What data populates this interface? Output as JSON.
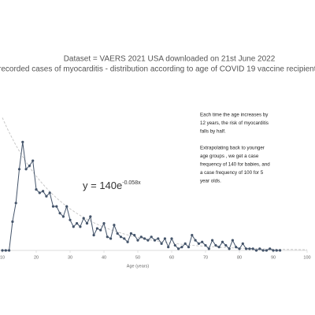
{
  "chart_data": {
    "type": "line",
    "title": "Dataset = VAERS 2021 USA downloaded on 21st June 2022",
    "subtitle": "recorded cases of myocarditis - distribution according to age of COVID 19 vaccine recipient",
    "x_label": "Age (years)",
    "x": [
      10,
      11,
      12,
      13,
      14,
      15,
      16,
      17,
      18,
      19,
      20,
      21,
      22,
      23,
      24,
      25,
      26,
      27,
      28,
      29,
      30,
      31,
      32,
      33,
      34,
      35,
      36,
      37,
      38,
      39,
      40,
      41,
      42,
      43,
      44,
      45,
      46,
      47,
      48,
      49,
      50,
      51,
      52,
      53,
      54,
      55,
      56,
      57,
      58,
      59,
      60,
      61,
      62,
      63,
      64,
      65,
      66,
      67,
      68,
      69,
      70,
      71,
      72,
      73,
      74,
      75,
      76,
      77,
      78,
      79,
      80,
      81,
      82,
      83,
      84,
      85,
      86,
      87,
      88,
      89,
      90,
      91,
      92
    ],
    "series": [
      {
        "color": "#44546a",
        "values": [
          0,
          0,
          0,
          17,
          28,
          48,
          64,
          48,
          50,
          53,
          36,
          34,
          35,
          32,
          34,
          26,
          26,
          22,
          20,
          26,
          18,
          14,
          16,
          14,
          19,
          16,
          20,
          9,
          13,
          12,
          16,
          8,
          7,
          15,
          10,
          8,
          7,
          5,
          10,
          9,
          6,
          8,
          7,
          6,
          8,
          6,
          7,
          4,
          7,
          2,
          7,
          3,
          1,
          2,
          4,
          2,
          9,
          6,
          4,
          5,
          3,
          1,
          6,
          3,
          2,
          5,
          3,
          1,
          6,
          2,
          1,
          4,
          1,
          1,
          1,
          0,
          1,
          0,
          0,
          1,
          0,
          0,
          0
        ]
      }
    ],
    "trendline": {
      "a": 140,
      "b": -0.058,
      "color": "#c8c8c8"
    },
    "equation": {
      "text": "y = 140e",
      "exponent": "-0.058x"
    },
    "xlim": [
      10,
      100
    ],
    "ylim": [
      0,
      80
    ],
    "xticks": [
      10,
      20,
      30,
      40,
      50,
      60,
      70,
      80,
      90,
      100
    ],
    "annotations": [
      [
        "Each time the age increases by",
        "12 years, the risk of myocarditis",
        "falls by half."
      ],
      [
        "Extrapolating back to younger",
        "age groups , we get a case",
        "frequency of 140 for babies, and",
        "a case frequency of 100 for 5",
        "year olds."
      ]
    ]
  }
}
